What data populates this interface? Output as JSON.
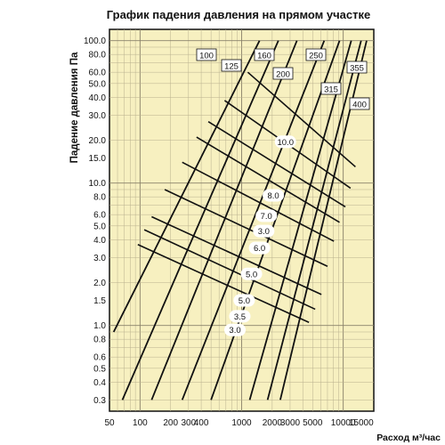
{
  "chart_data": {
    "type": "line",
    "title": "График падения давления на прямом участке",
    "ylabel": "Падение давления Па",
    "xlabel": "Расход м³/час",
    "y_scale": "log",
    "x_scale": "log",
    "ylim": [
      0.25,
      120
    ],
    "xlim": [
      50,
      20000
    ],
    "grid": true,
    "background": "#f7f0c0",
    "line_color": "#111111",
    "y_ticks": [
      0.3,
      0.4,
      0.5,
      0.6,
      0.8,
      1.0,
      1.5,
      2.0,
      3.0,
      4.0,
      5.0,
      6.0,
      8.0,
      10.0,
      15.0,
      20.0,
      30.0,
      40.0,
      50.0,
      60.0,
      80.0,
      100.0
    ],
    "y_tick_labels": [
      "0.3",
      "0.4",
      "0.5",
      "0.6",
      "0.8",
      "1.0",
      "1.5",
      "2.0",
      "3.0",
      "4.0",
      "5.0",
      "6.0",
      "8.0",
      "10.0",
      "15.0",
      "20.0",
      "30.0",
      "40.0",
      "50.0",
      "60.0",
      "80.0",
      "100.0"
    ],
    "x_ticks": [
      50,
      100,
      200,
      300,
      400,
      1000,
      2000,
      3000,
      5000,
      10000,
      15000
    ],
    "x_tick_labels": [
      "50",
      "100",
      "200",
      "300",
      "400",
      "1000",
      "2000",
      "3000",
      "5000",
      "10000",
      "15000"
    ],
    "series": [
      {
        "name": "100",
        "points": [
          [
            55,
            0.9
          ],
          [
            1500,
            100
          ]
        ]
      },
      {
        "name": "125",
        "points": [
          [
            67,
            0.3
          ],
          [
            2300,
            100
          ]
        ]
      },
      {
        "name": "160",
        "points": [
          [
            130,
            0.3
          ],
          [
            3500,
            100
          ]
        ]
      },
      {
        "name": "200",
        "points": [
          [
            260,
            0.3
          ],
          [
            6500,
            100
          ]
        ]
      },
      {
        "name": "250",
        "points": [
          [
            500,
            0.3
          ],
          [
            9200,
            100
          ]
        ]
      },
      {
        "name": "315",
        "points": [
          [
            1200,
            0.3
          ],
          [
            12000,
            100
          ]
        ]
      },
      {
        "name": "355",
        "points": [
          [
            1800,
            0.3
          ],
          [
            15000,
            100
          ]
        ]
      },
      {
        "name": "400",
        "points": [
          [
            2400,
            0.3
          ],
          [
            17000,
            100
          ]
        ]
      }
    ],
    "velocity_lines": [
      {
        "label": "10.0",
        "label_at": [
          2700,
          19.5
        ],
        "points": [
          [
            1150,
            60
          ],
          [
            13200,
            13
          ]
        ]
      },
      {
        "label": "8.0",
        "label_at": [
          2050,
          8.2
        ],
        "points": [
          [
            680,
            38
          ],
          [
            11800,
            9.2
          ]
        ]
      },
      {
        "label": "7.0",
        "label_at": [
          1750,
          5.9
        ],
        "points": [
          [
            470,
            27
          ],
          [
            10500,
            6.8
          ]
        ]
      },
      {
        "label": "3.0",
        "label_at": [
          1650,
          4.6
        ],
        "points": [
          [
            360,
            21
          ],
          [
            9200,
            5.3
          ]
        ]
      },
      {
        "label": "6.0",
        "label_at": [
          1500,
          3.5
        ],
        "points": [
          [
            260,
            14
          ],
          [
            8100,
            3.9
          ]
        ]
      },
      {
        "label": "5.0",
        "label_at": [
          1250,
          2.3
        ],
        "points": [
          [
            175,
            9
          ],
          [
            7000,
            2.6
          ]
        ]
      },
      {
        "label": "5.0",
        "label_at": [
          1060,
          1.5
        ],
        "points": [
          [
            130,
            5.8
          ],
          [
            6100,
            1.65
          ]
        ]
      },
      {
        "label": "3.5",
        "label_at": [
          960,
          1.16
        ],
        "points": [
          [
            110,
            4.7
          ],
          [
            5300,
            1.3
          ]
        ]
      },
      {
        "label": "3.0",
        "label_at": [
          860,
          0.93
        ],
        "points": [
          [
            95,
            3.7
          ],
          [
            4600,
            1.05
          ]
        ]
      }
    ]
  }
}
